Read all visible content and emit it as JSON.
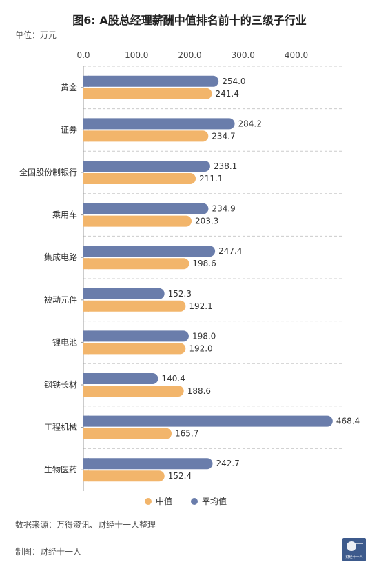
{
  "title": "图6: A股总经理薪酬中值排名前十的三级子行业",
  "unit_label": "单位：万元",
  "source": "数据来源：万得资讯、财经十一人整理",
  "maker": "制图：财经十一人",
  "logo_text": "财经十一人",
  "colors": {
    "median": "#F2B56B",
    "mean": "#6A7DAB",
    "grid": "#cccccc"
  },
  "chart_data": {
    "type": "bar",
    "orientation": "horizontal",
    "categories": [
      "黄金",
      "证券",
      "全国股份制银行",
      "乘用车",
      "集成电路",
      "被动元件",
      "锂电池",
      "钢铁长材",
      "工程机械",
      "生物医药"
    ],
    "series": [
      {
        "name": "平均值",
        "values": [
          254.0,
          284.2,
          238.1,
          234.9,
          247.4,
          152.3,
          198.0,
          140.4,
          468.4,
          242.7
        ]
      },
      {
        "name": "中值",
        "values": [
          241.4,
          234.7,
          211.1,
          203.3,
          198.6,
          192.1,
          192.0,
          188.6,
          165.7,
          152.4
        ]
      }
    ],
    "xticks": [
      "0.0",
      "100.0",
      "200.0",
      "300.0",
      "400.0"
    ],
    "xlim": [
      0,
      470
    ],
    "grid": true,
    "legend": {
      "position": "bottom-center",
      "items": [
        "中值",
        "平均值"
      ]
    }
  }
}
